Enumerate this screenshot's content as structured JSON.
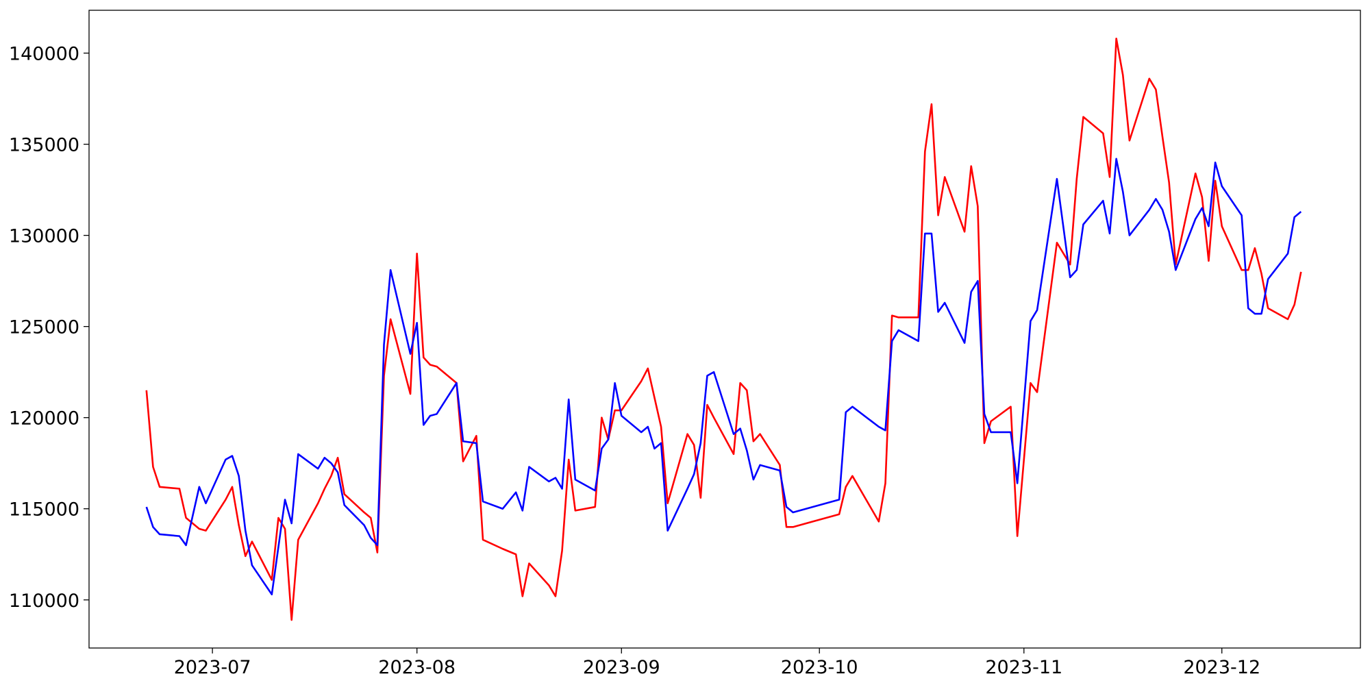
{
  "chart_data": {
    "type": "line",
    "x": [
      172,
      173,
      174,
      177,
      178,
      180,
      181,
      184,
      185,
      186,
      187,
      188,
      191,
      192,
      193,
      194,
      195,
      198,
      199,
      200,
      201,
      202,
      205,
      206,
      207,
      208,
      209,
      212,
      213,
      214,
      215,
      216,
      219,
      220,
      222,
      223,
      226,
      228,
      229,
      230,
      233,
      234,
      235,
      236,
      237,
      240,
      241,
      242,
      243,
      244,
      247,
      248,
      249,
      250,
      251,
      254,
      255,
      256,
      257,
      258,
      261,
      262,
      263,
      264,
      265,
      268,
      269,
      270,
      277,
      278,
      279,
      283,
      284,
      285,
      286,
      289,
      290,
      291,
      292,
      293,
      296,
      297,
      298,
      299,
      300,
      303,
      304,
      306,
      307,
      310,
      312,
      313,
      314,
      317,
      318,
      319,
      320,
      321,
      324,
      325,
      326,
      327,
      328,
      331,
      332,
      333,
      334,
      335,
      338,
      339,
      340,
      341,
      342,
      345,
      346,
      347
    ],
    "series": [
      {
        "color": "#ff0000",
        "values": [
          121500,
          117300,
          116200,
          116100,
          114500,
          113900,
          113800,
          115500,
          116200,
          114100,
          112400,
          113200,
          111100,
          114500,
          113900,
          108900,
          113300,
          115300,
          116100,
          116800,
          117800,
          115800,
          114800,
          114500,
          112600,
          122300,
          125400,
          121300,
          129000,
          123300,
          122900,
          122800,
          121900,
          117600,
          119000,
          113300,
          112800,
          112500,
          110200,
          112000,
          110800,
          110200,
          112700,
          117700,
          114900,
          115100,
          120000,
          118800,
          120400,
          120400,
          122000,
          122700,
          121100,
          119500,
          115300,
          119100,
          118500,
          115600,
          120700,
          120000,
          118000,
          121900,
          121500,
          118700,
          119100,
          117400,
          114000,
          114000,
          114700,
          116200,
          116800,
          114300,
          116400,
          125600,
          125500,
          125500,
          134600,
          137200,
          131100,
          133200,
          130200,
          133800,
          131600,
          118600,
          119800,
          120600,
          113500,
          121900,
          121400,
          129600,
          128400,
          133100,
          136500,
          135600,
          133200,
          140800,
          138800,
          135200,
          138600,
          138000,
          135400,
          132900,
          128400,
          133400,
          132100,
          128600,
          133000,
          130500,
          128100,
          128100,
          129300,
          127900,
          126000,
          125400,
          126200,
          128000
        ]
      },
      {
        "color": "#0000ff",
        "values": [
          115100,
          114000,
          113600,
          113500,
          113000,
          116200,
          115300,
          117700,
          117900,
          116800,
          113800,
          111900,
          110300,
          112900,
          115500,
          114200,
          118000,
          117200,
          117800,
          117500,
          117000,
          115200,
          114100,
          113400,
          113000,
          124000,
          128100,
          123500,
          125200,
          119600,
          120100,
          120200,
          121900,
          118700,
          118600,
          115400,
          115000,
          115900,
          114900,
          117300,
          116500,
          116700,
          116100,
          121000,
          116600,
          116000,
          118300,
          118800,
          121900,
          120100,
          119200,
          119500,
          118300,
          118600,
          113800,
          116100,
          116900,
          118600,
          122300,
          122500,
          119100,
          119400,
          118200,
          116600,
          117400,
          117100,
          115100,
          114800,
          115500,
          120300,
          120600,
          119500,
          119300,
          124200,
          124800,
          124200,
          130100,
          130100,
          125800,
          126300,
          124100,
          126900,
          127500,
          120200,
          119200,
          119200,
          116400,
          125300,
          125900,
          133100,
          127700,
          128100,
          130600,
          131900,
          130100,
          134200,
          132400,
          130000,
          131400,
          132000,
          131400,
          130200,
          128100,
          130900,
          131500,
          130500,
          134000,
          132700,
          131100,
          126000,
          125700,
          125700,
          127600,
          129000,
          131000,
          131300
        ]
      }
    ],
    "xlim": [
      163.3,
      356
    ],
    "xticks": [
      {
        "value": 182,
        "label": "2023-07"
      },
      {
        "value": 213,
        "label": "2023-08"
      },
      {
        "value": 244,
        "label": "2023-09"
      },
      {
        "value": 274,
        "label": "2023-10"
      },
      {
        "value": 305,
        "label": "2023-11"
      },
      {
        "value": 335,
        "label": "2023-12"
      }
    ],
    "ylim": [
      107360,
      142350
    ],
    "yticks": [
      110000,
      115000,
      120000,
      125000,
      130000,
      135000,
      140000
    ]
  }
}
